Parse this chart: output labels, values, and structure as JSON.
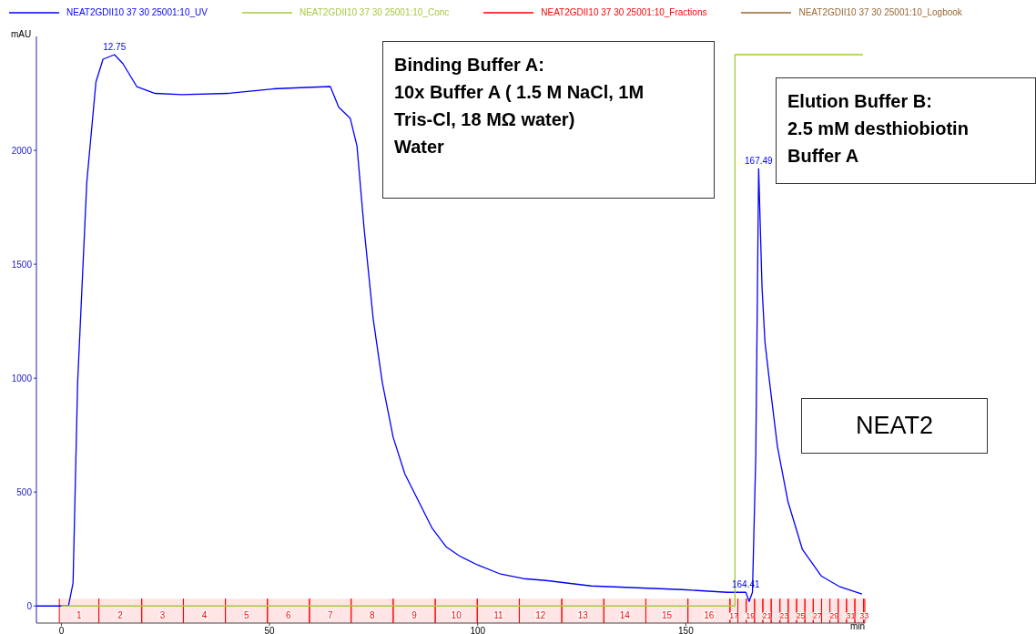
{
  "chart_data": {
    "type": "line",
    "xlabel": "min",
    "ylabel": "mAU",
    "xlim": [
      -6,
      193
    ],
    "ylim": [
      -75,
      2500
    ],
    "xticks": [
      0,
      50,
      100,
      150
    ],
    "yticks": [
      0,
      500,
      1000,
      1500,
      2000
    ],
    "legend": "top",
    "line_style": "solid",
    "series": [
      {
        "name": "NEAT2GDII10 37 30 25001:10_UV",
        "color": "#0000ff",
        "x": [
          -6,
          1.7,
          2.8,
          3.9,
          6.1,
          8.3,
          10,
          12.75,
          14.8,
          18.1,
          22.5,
          29,
          40,
          50.9,
          57.4,
          64.6,
          66.6,
          69.4,
          71,
          72.7,
          74.9,
          77.1,
          79.7,
          82.5,
          84.7,
          86.9,
          89.1,
          92.4,
          95.6,
          100,
          105.5,
          111,
          116.4,
          121.8,
          127.3,
          138.2,
          149.1,
          160,
          164.41,
          165.2,
          166,
          166.8,
          167.49,
          168.3,
          169,
          170,
          172,
          174.5,
          178,
          182.5,
          187,
          192.3
        ],
        "values": [
          0,
          0,
          100,
          980,
          1860,
          2300,
          2400,
          2420,
          2380,
          2280,
          2250,
          2245,
          2250,
          2270,
          2275,
          2280,
          2190,
          2140,
          2020,
          1660,
          1260,
          980,
          740,
          580,
          500,
          420,
          340,
          260,
          220,
          180,
          140,
          120,
          112,
          100,
          88,
          80,
          72,
          60,
          60,
          20,
          60,
          660,
          1920,
          1400,
          1160,
          1000,
          700,
          460,
          248,
          132,
          84,
          52
        ]
      },
      {
        "name": "NEAT2GDII10 37 30 25001:10_Conc",
        "color": "#a4c93a",
        "x": [
          0,
          161.8,
          161.8,
          192.5
        ],
        "values": [
          0,
          0,
          2420,
          2420
        ]
      },
      {
        "name": "NEAT2GDII10 37 30 25001:10_Fractions",
        "color": "#ff0000"
      },
      {
        "name": "NEAT2GDII10 37 30 25001:10_Logbook",
        "color": "#996633"
      }
    ],
    "bands": [
      {
        "axis": "x",
        "from": -0.5,
        "to": 9,
        "label": "1",
        "color": "#ff0000"
      },
      {
        "axis": "x",
        "from": 9,
        "to": 19.3,
        "label": "2",
        "color": "#ff0000"
      },
      {
        "axis": "x",
        "from": 19.3,
        "to": 29.3,
        "label": "3",
        "color": "#ff0000"
      },
      {
        "axis": "x",
        "from": 29.3,
        "to": 39.4,
        "label": "4",
        "color": "#ff0000"
      },
      {
        "axis": "x",
        "from": 39.4,
        "to": 49.5,
        "label": "5",
        "color": "#ff0000"
      },
      {
        "axis": "x",
        "from": 49.5,
        "to": 59.6,
        "label": "6",
        "color": "#ff0000"
      },
      {
        "axis": "x",
        "from": 59.6,
        "to": 69.6,
        "label": "7",
        "color": "#ff0000"
      },
      {
        "axis": "x",
        "from": 69.6,
        "to": 79.7,
        "label": "8",
        "color": "#ff0000"
      },
      {
        "axis": "x",
        "from": 79.7,
        "to": 89.8,
        "label": "9",
        "color": "#ff0000"
      },
      {
        "axis": "x",
        "from": 89.8,
        "to": 99.9,
        "label": "10",
        "color": "#ff0000"
      },
      {
        "axis": "x",
        "from": 99.9,
        "to": 110,
        "label": "11",
        "color": "#ff0000"
      },
      {
        "axis": "x",
        "from": 110,
        "to": 120.2,
        "label": "12",
        "color": "#ff0000"
      },
      {
        "axis": "x",
        "from": 120.2,
        "to": 130.3,
        "label": "13",
        "color": "#ff0000"
      },
      {
        "axis": "x",
        "from": 130.3,
        "to": 140.4,
        "label": "14",
        "color": "#ff0000"
      },
      {
        "axis": "x",
        "from": 140.4,
        "to": 150.5,
        "label": "15",
        "color": "#ff0000"
      },
      {
        "axis": "x",
        "from": 150.5,
        "to": 160.6,
        "label": "16",
        "color": "#ff0000"
      },
      {
        "axis": "x",
        "from": 160.6,
        "to": 162.5,
        "label": "17",
        "color": "#ff0000"
      },
      {
        "axis": "x",
        "from": 162.5,
        "to": 164.5,
        "label": null,
        "color": "#ff0000"
      },
      {
        "axis": "x",
        "from": 164.5,
        "to": 166.5,
        "label": "19",
        "color": "#ff0000"
      },
      {
        "axis": "x",
        "from": 166.5,
        "to": 168.5,
        "label": null,
        "color": "#ff0000"
      },
      {
        "axis": "x",
        "from": 168.5,
        "to": 170.5,
        "label": "21",
        "color": "#ff0000"
      },
      {
        "axis": "x",
        "from": 170.5,
        "to": 172.6,
        "label": null,
        "color": "#ff0000"
      },
      {
        "axis": "x",
        "from": 172.6,
        "to": 174.6,
        "label": "23",
        "color": "#ff0000"
      },
      {
        "axis": "x",
        "from": 174.6,
        "to": 176.6,
        "label": null,
        "color": "#ff0000"
      },
      {
        "axis": "x",
        "from": 176.6,
        "to": 178.6,
        "label": "25",
        "color": "#ff0000"
      },
      {
        "axis": "x",
        "from": 178.6,
        "to": 180.6,
        "label": null,
        "color": "#ff0000"
      },
      {
        "axis": "x",
        "from": 180.6,
        "to": 182.6,
        "label": "27",
        "color": "#ff0000"
      },
      {
        "axis": "x",
        "from": 182.6,
        "to": 184.6,
        "label": null,
        "color": "#ff0000"
      },
      {
        "axis": "x",
        "from": 184.6,
        "to": 186.6,
        "label": "29",
        "color": "#ff0000"
      },
      {
        "axis": "x",
        "from": 186.6,
        "to": 188.6,
        "label": null,
        "color": "#ff0000"
      },
      {
        "axis": "x",
        "from": 188.6,
        "to": 190.6,
        "label": "31",
        "color": "#ff0000"
      },
      {
        "axis": "x",
        "from": 190.6,
        "to": 192.7,
        "label": null,
        "color": "#ff0000"
      },
      {
        "axis": "x",
        "from": 192.7,
        "to": 193,
        "label": "33",
        "color": "#ff0000"
      }
    ],
    "annotations": [
      "Binding Buffer A:\n10x Buffer A ( 1.5 M NaCl, 1M Tris-Cl, 18 MΩ water)\nWater",
      "Elution Buffer B:\n2.5 mM desthiobiotin\nBuffer A",
      "NEAT2",
      {
        "text": "12.75",
        "x": 12.75,
        "y": 2420
      },
      {
        "text": "167.49",
        "x": 167.49,
        "y": 1920
      },
      {
        "text": "164.41",
        "x": 164.41,
        "y": 60
      }
    ]
  }
}
